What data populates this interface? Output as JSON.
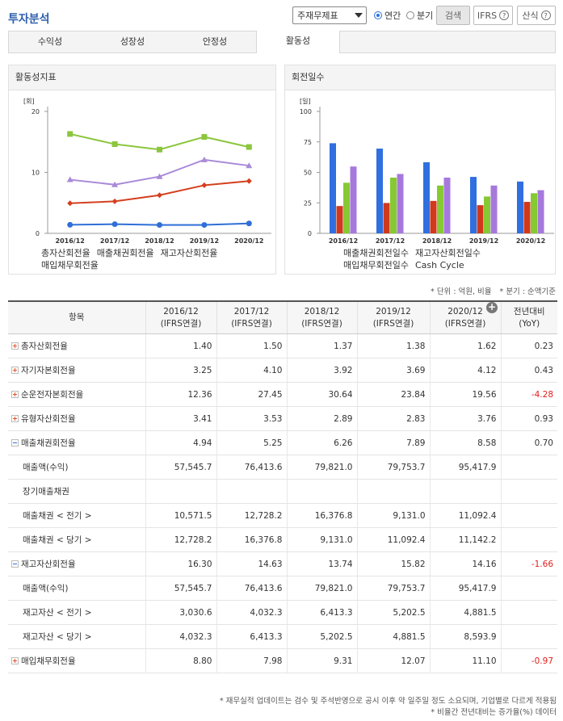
{
  "header": {
    "title": "투자분석",
    "select": "주재무제표",
    "radios": [
      "연간",
      "분기"
    ],
    "radio_selected": 0,
    "search": "검색",
    "ifrs": "IFRS",
    "formula": "산식"
  },
  "tabs": [
    "수익성",
    "성장성",
    "안정성",
    "활동성"
  ],
  "active_tab": 3,
  "chart_data": [
    {
      "type": "line",
      "title": "활동성지표",
      "y_label": "[회]",
      "categories": [
        "2016/12",
        "2017/12",
        "2018/12",
        "2019/12",
        "2020/12"
      ],
      "ylim": [
        0,
        20
      ],
      "yticks": [
        0,
        10,
        20
      ],
      "grid": false,
      "series": [
        {
          "name": "총자산회전율",
          "color": "#2f6fd6",
          "marker": "circle",
          "values": [
            1.4,
            1.5,
            1.37,
            1.38,
            1.62
          ]
        },
        {
          "name": "매출채권회전율",
          "color": "#d4401f",
          "marker": "diamond",
          "values": [
            4.94,
            5.25,
            6.26,
            7.89,
            8.58
          ]
        },
        {
          "name": "재고자산회전율",
          "color": "#8cc63e",
          "marker": "square",
          "values": [
            16.3,
            14.63,
            13.74,
            15.82,
            14.16
          ]
        },
        {
          "name": "매입채무회전율",
          "color": "#a98ad8",
          "marker": "triangle",
          "values": [
            8.8,
            7.98,
            9.31,
            12.07,
            11.1
          ]
        }
      ]
    },
    {
      "type": "bar",
      "title": "회전일수",
      "y_label": "[일]",
      "categories": [
        "2016/12",
        "2017/12",
        "2018/12",
        "2019/12",
        "2020/12"
      ],
      "ylim": [
        0,
        100
      ],
      "yticks": [
        0,
        25,
        50,
        75,
        100
      ],
      "grid": false,
      "series": [
        {
          "name": "매출채권회전일수",
          "color": "#2f6fe0",
          "values": [
            73.9,
            69.5,
            58.3,
            46.3,
            42.5
          ]
        },
        {
          "name": "재고자산회전일수",
          "color": "#d0391c",
          "values": [
            22.4,
            24.9,
            26.6,
            23.1,
            25.8
          ]
        },
        {
          "name": "매입채무회전일수",
          "color": "#86c932",
          "values": [
            41.5,
            45.7,
            39.2,
            30.2,
            32.9
          ]
        },
        {
          "name": "Cash Cycle",
          "color": "#a678dc",
          "values": [
            54.8,
            48.7,
            45.7,
            39.2,
            35.4
          ]
        }
      ]
    }
  ],
  "table": {
    "notes": [
      "* 단위 : 억원, 비율",
      "* 분기 : 순액기준"
    ],
    "item_header": "항목",
    "columns": [
      {
        "period": "2016/12",
        "basis": "(IFRS연결)"
      },
      {
        "period": "2017/12",
        "basis": "(IFRS연결)"
      },
      {
        "period": "2018/12",
        "basis": "(IFRS연결)"
      },
      {
        "period": "2019/12",
        "basis": "(IFRS연결)"
      },
      {
        "period": "2020/12",
        "basis": "(IFRS연결)"
      },
      {
        "period": "전년대비",
        "basis": "(YoY)"
      }
    ],
    "rows": [
      {
        "name": "총자산회전율",
        "toggle": "plus",
        "values": [
          "1.40",
          "1.50",
          "1.37",
          "1.38",
          "1.62",
          "0.23"
        ]
      },
      {
        "name": "자기자본회전율",
        "toggle": "plus",
        "values": [
          "3.25",
          "4.10",
          "3.92",
          "3.69",
          "4.12",
          "0.43"
        ]
      },
      {
        "name": "순운전자본회전율",
        "toggle": "plus",
        "values": [
          "12.36",
          "27.45",
          "30.64",
          "23.84",
          "19.56",
          "-4.28"
        ]
      },
      {
        "name": "유형자산회전율",
        "toggle": "plus",
        "values": [
          "3.41",
          "3.53",
          "2.89",
          "2.83",
          "3.76",
          "0.93"
        ]
      },
      {
        "name": "매출채권회전율",
        "toggle": "minus",
        "values": [
          "4.94",
          "5.25",
          "6.26",
          "7.89",
          "8.58",
          "0.70"
        ]
      },
      {
        "name": "매출액(수익)",
        "values": [
          "57,545.7",
          "76,413.6",
          "79,821.0",
          "79,753.7",
          "95,417.9",
          null
        ]
      },
      {
        "name": "장기매출채권",
        "values": [
          null,
          null,
          null,
          null,
          null,
          null
        ]
      },
      {
        "name": "매출채권 < 전기 >",
        "values": [
          "10,571.5",
          "12,728.2",
          "16,376.8",
          "9,131.0",
          "11,092.4",
          null
        ]
      },
      {
        "name": "매출채권 < 당기 >",
        "values": [
          "12,728.2",
          "16,376.8",
          "9,131.0",
          "11,092.4",
          "11,142.2",
          null
        ]
      },
      {
        "name": "재고자산회전율",
        "toggle": "minus",
        "values": [
          "16.30",
          "14.63",
          "13.74",
          "15.82",
          "14.16",
          "-1.66"
        ]
      },
      {
        "name": "매출액(수익)",
        "values": [
          "57,545.7",
          "76,413.6",
          "79,821.0",
          "79,753.7",
          "95,417.9",
          null
        ]
      },
      {
        "name": "재고자산 < 전기 >",
        "values": [
          "3,030.6",
          "4,032.3",
          "6,413.3",
          "5,202.5",
          "4,881.5",
          null
        ]
      },
      {
        "name": "재고자산 < 당기 >",
        "values": [
          "4,032.3",
          "6,413.3",
          "5,202.5",
          "4,881.5",
          "8,593.9",
          null
        ]
      },
      {
        "name": "매입채무회전율",
        "toggle": "plus",
        "values": [
          "8.80",
          "7.98",
          "9.31",
          "12.07",
          "11.10",
          "-0.97"
        ]
      }
    ]
  },
  "footer": [
    "* 재무실적 업데이트는 검수 및 주석반영으로 공시 이후 약 일주일 정도 소요되며, 기업별로 다르게 적용됨",
    "* 비율간 전년대비는 증가율(%) 데이터"
  ]
}
